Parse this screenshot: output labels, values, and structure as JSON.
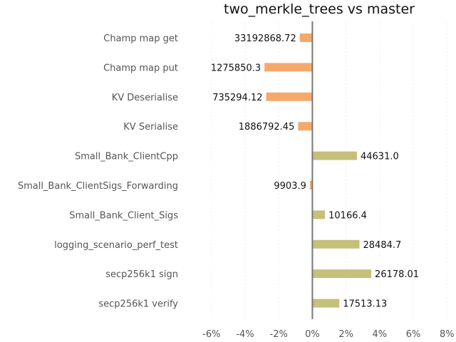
{
  "chart_data": {
    "type": "bar",
    "orientation": "horizontal",
    "title": "two_merkle_trees vs master",
    "xlabel": "",
    "ylabel": "",
    "xlim": [
      -6.5,
      8.2
    ],
    "x_ticks": [
      -6,
      -4,
      -2,
      0,
      2,
      4,
      6,
      8
    ],
    "x_tick_labels": [
      "-6%",
      "-4%",
      "-2%",
      "0%",
      "2%",
      "4%",
      "6%",
      "8%"
    ],
    "grid": true,
    "legend": "none",
    "colors": {
      "negative": "#f4a96b",
      "positive": "#c5c07a",
      "axis": "#777777"
    },
    "categories": [
      "Champ map get",
      "Champ map put",
      "KV Deserialise",
      "KV Serialise",
      "Small_Bank_ClientCpp",
      "Small_Bank_ClientSigs_Forwarding",
      "Small_Bank_Client_Sigs",
      "logging_scenario_perf_test",
      "secp256k1 sign",
      "secp256k1 verify"
    ],
    "values": [
      -0.75,
      -2.85,
      -2.75,
      -0.85,
      2.65,
      -0.15,
      0.75,
      2.8,
      3.5,
      1.6
    ],
    "data_labels": [
      "33192868.72",
      "1275850.3",
      "735294.12",
      "1886792.45",
      "44631.0",
      "9903.9",
      "10166.4",
      "28484.7",
      "26178.01",
      "17513.13"
    ]
  }
}
